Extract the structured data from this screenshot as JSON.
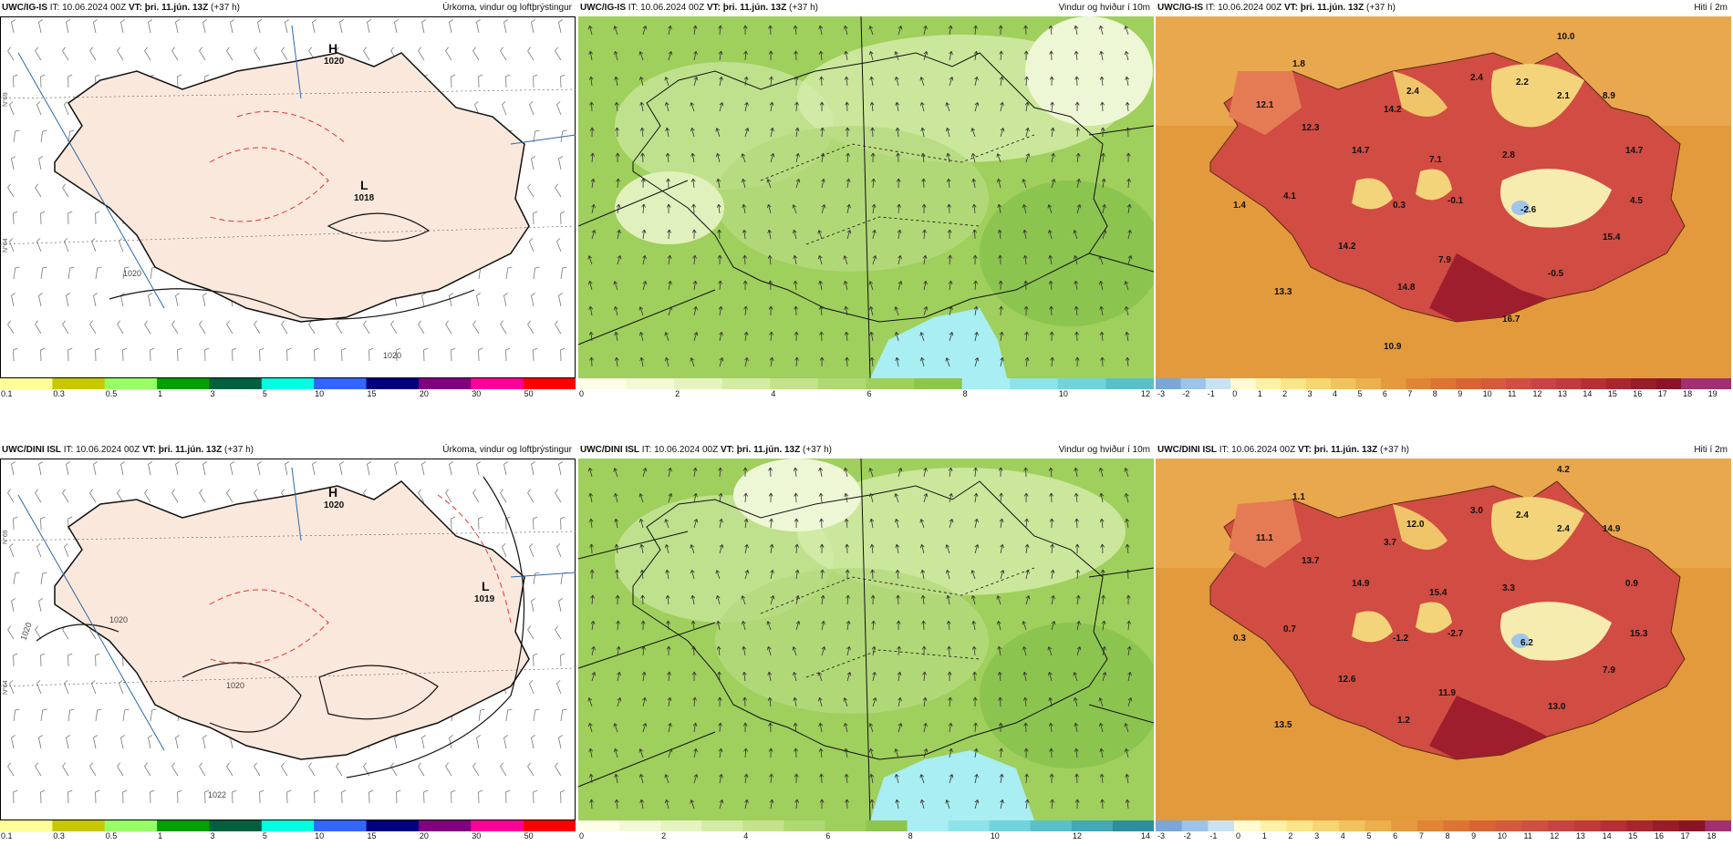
{
  "rows": [
    {
      "model": "UWC/IG-IS",
      "init": "IT: 10.06.2024 00Z",
      "vt_label": "VT:",
      "vt": "þri. 11.jún. 13Z",
      "lead": "(+37 h)",
      "precip_title": "Úrkoma, vindur og loftþrýstingur",
      "wind_title": "Vindur og hviður í 10m",
      "temp_title": "Hiti í 2m",
      "pressure": [
        {
          "type": "H",
          "value": "1020"
        },
        {
          "type": "L",
          "value": "1018"
        }
      ],
      "isobar_labels": [
        "1020",
        "1020"
      ],
      "temps": [
        "10.0",
        "1.8",
        "2.4",
        "2.4",
        "2.2",
        "2.1",
        "8.9",
        "12.1",
        "12.3",
        "14.2",
        "14.7",
        "7.1",
        "2.8",
        "14.7",
        "4.1",
        "1.4",
        "0.3",
        "-0.1",
        "-2.6",
        "4.5",
        "15.4",
        "14.2",
        "7.9",
        "-0.5",
        "13.3",
        "14.8",
        "16.7",
        "10.9"
      ],
      "wind_ticks": [
        "0",
        "2",
        "4",
        "6",
        "8",
        "10",
        "12"
      ]
    },
    {
      "model": "UWC/DINI ISL",
      "init": "IT: 10.06.2024 00Z",
      "vt_label": "VT:",
      "vt": "þri. 11.jún. 13Z",
      "lead": "(+37 h)",
      "precip_title": "Úrkoma, vindur og loftþrýstingur",
      "wind_title": "Vindur og hviður í 10m",
      "temp_title": "Hiti í 2m",
      "pressure": [
        {
          "type": "H",
          "value": "1020"
        },
        {
          "type": "L",
          "value": "1019"
        }
      ],
      "isobar_labels": [
        "1020",
        "1020",
        "1020",
        "1022"
      ],
      "temps": [
        "4.2",
        "1.1",
        "12.0",
        "3.0",
        "2.4",
        "2.4",
        "14.9",
        "11.1",
        "13.7",
        "3.7",
        "14.9",
        "15.4",
        "3.3",
        "0.9",
        "0.7",
        "0.3",
        "-1.2",
        "-2.7",
        "6.2",
        "15.3",
        "7.9",
        "12.6",
        "11.9",
        "13.0",
        "13.5",
        "1.2"
      ],
      "wind_ticks": [
        "0",
        "2",
        "4",
        "6",
        "8",
        "10",
        "12",
        "14"
      ]
    }
  ],
  "precip_scale": {
    "ticks": [
      "0.1",
      "0.3",
      "0.5",
      "1",
      "3",
      "5",
      "10",
      "15",
      "20",
      "30",
      "50"
    ],
    "colors": [
      "#ffff99",
      "#c8c800",
      "#99ff66",
      "#00a000",
      "#006040",
      "#00ffe0",
      "#3366ff",
      "#000080",
      "#800080",
      "#ff0099",
      "#ff0000"
    ]
  },
  "temp_scale": {
    "ticks_top": [
      "-3",
      "-2",
      "-1",
      "0",
      "1",
      "2",
      "3",
      "4",
      "5",
      "6",
      "7",
      "8",
      "9",
      "10",
      "11",
      "12",
      "13",
      "14",
      "15",
      "16",
      "17",
      "18",
      "19"
    ],
    "ticks_bottom": [
      "-3",
      "-2",
      "-1",
      "0",
      "1",
      "2",
      "3",
      "4",
      "5",
      "6",
      "7",
      "8",
      "9",
      "10",
      "11",
      "12",
      "13",
      "14",
      "15",
      "16",
      "17",
      "18"
    ]
  },
  "grid_labels": [
    "N°69",
    "N°64"
  ],
  "colors": {
    "land_precip": "#fbe8dc",
    "sea_precip": "#ffffff",
    "sea_temp": "#e39a3c",
    "land_temp_hot": "#c23b3b",
    "land_temp_mid": "#e06a4a",
    "land_temp_cool": "#f3d47a",
    "wind_low": "#eef7d5",
    "wind_mid": "#9fcf5c",
    "wind_high": "#7fb84a",
    "wind_strong": "#a8eef2"
  }
}
